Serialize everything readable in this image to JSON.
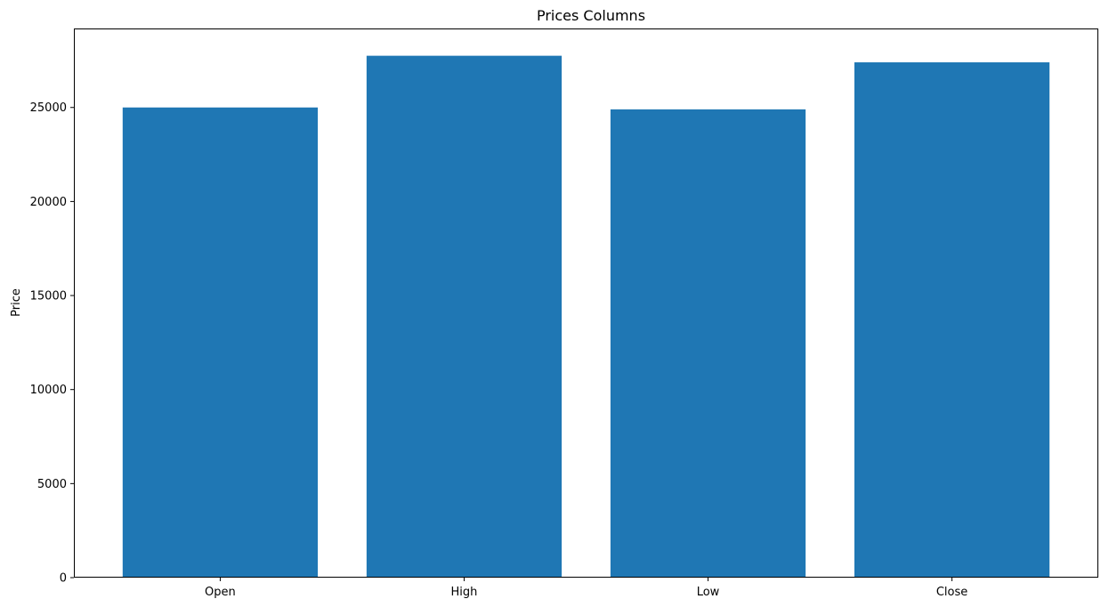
{
  "chart_data": {
    "type": "bar",
    "title": "Prices Columns",
    "xlabel": "",
    "ylabel": "Price",
    "categories": [
      "Open",
      "High",
      "Low",
      "Close"
    ],
    "values": [
      25000,
      27750,
      24900,
      27400
    ],
    "ylim": [
      0,
      29200
    ],
    "yticks": [
      0,
      5000,
      10000,
      15000,
      20000,
      25000
    ],
    "bar_color": "#1f77b4",
    "grid": false,
    "legend": false
  }
}
